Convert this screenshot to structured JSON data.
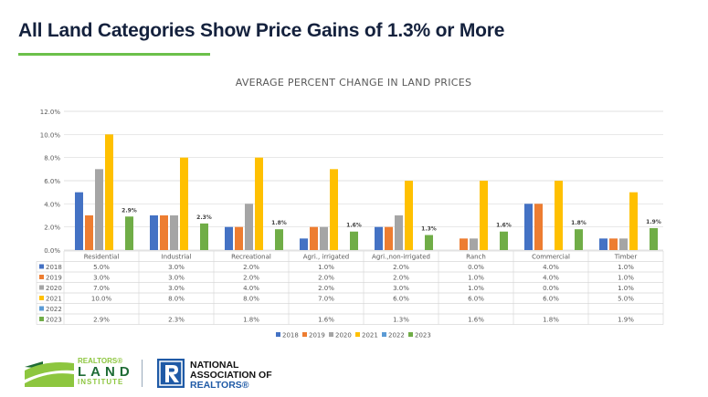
{
  "title": "All Land Categories Show Price Gains of 1.3% or More",
  "colors": {
    "accent": "#6cc04a",
    "title": "#14213d"
  },
  "chart_data": {
    "type": "bar",
    "title": "AVERAGE PERCENT CHANGE IN LAND PRICES",
    "categories": [
      "Residential",
      "Industrial",
      "Recreational",
      "Agri., irrigated",
      "Agri.,non-irrigated",
      "Ranch",
      "Commercial",
      "Timber"
    ],
    "ylim": [
      0,
      12
    ],
    "yticks": [
      "0.0%",
      "2.0%",
      "4.0%",
      "6.0%",
      "8.0%",
      "10.0%",
      "12.0%"
    ],
    "grid": true,
    "legend": "bottom",
    "data_labels_series": "2023",
    "series": [
      {
        "name": "2018",
        "color": "#4472c4",
        "values": [
          5,
          3,
          2,
          1,
          2,
          0,
          4,
          1
        ],
        "labels": [
          "5.0%",
          "3.0%",
          "2.0%",
          "1.0%",
          "2.0%",
          "0.0%",
          "4.0%",
          "1.0%"
        ]
      },
      {
        "name": "2019",
        "color": "#ed7d31",
        "values": [
          3,
          3,
          2,
          2,
          2,
          1,
          4,
          1
        ],
        "labels": [
          "3.0%",
          "3.0%",
          "2.0%",
          "2.0%",
          "2.0%",
          "1.0%",
          "4.0%",
          "1.0%"
        ]
      },
      {
        "name": "2020",
        "color": "#a5a5a5",
        "values": [
          7,
          3,
          4,
          2,
          3,
          1,
          0,
          1
        ],
        "labels": [
          "7.0%",
          "3.0%",
          "4.0%",
          "2.0%",
          "3.0%",
          "1.0%",
          "0.0%",
          "1.0%"
        ]
      },
      {
        "name": "2021",
        "color": "#ffc000",
        "values": [
          10,
          8,
          8,
          7,
          6,
          6,
          6,
          5
        ],
        "labels": [
          "10.0%",
          "8.0%",
          "8.0%",
          "7.0%",
          "6.0%",
          "6.0%",
          "6.0%",
          "5.0%"
        ]
      },
      {
        "name": "2022",
        "color": "#5b9bd5",
        "values": [
          null,
          null,
          null,
          null,
          null,
          null,
          null,
          null
        ],
        "labels": [
          "",
          "",
          "",
          "",
          "",
          "",
          "",
          ""
        ]
      },
      {
        "name": "2023",
        "color": "#70ad47",
        "values": [
          2.9,
          2.3,
          1.8,
          1.6,
          1.3,
          1.6,
          1.8,
          1.9
        ],
        "labels": [
          "2.9%",
          "2.3%",
          "1.8%",
          "1.6%",
          "1.3%",
          "1.6%",
          "1.8%",
          "1.9%"
        ]
      }
    ]
  },
  "logos": {
    "rli": [
      "REALTORS®",
      "LAND",
      "INSTITUTE"
    ],
    "nar": [
      "NATIONAL",
      "ASSOCIATION OF",
      "REALTORS®"
    ]
  }
}
